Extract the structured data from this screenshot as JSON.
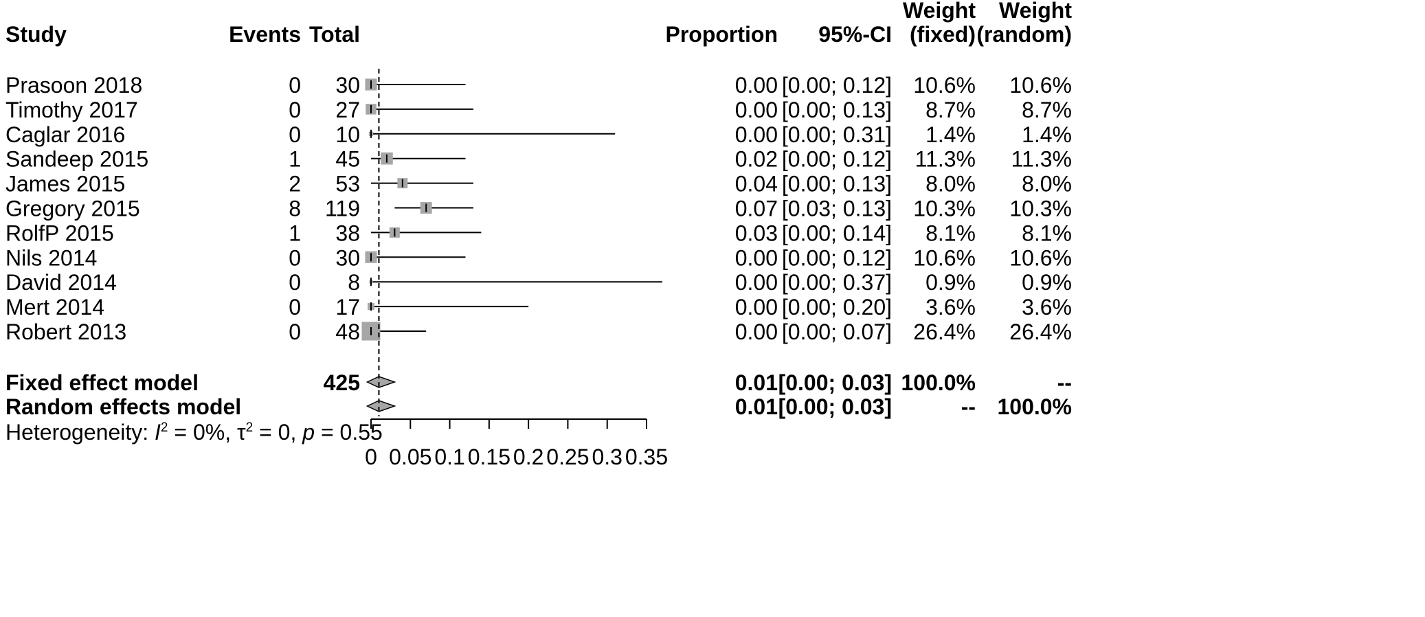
{
  "chart_data": {
    "type": "forest",
    "columns": {
      "study": "Study",
      "events": "Events",
      "total": "Total",
      "proportion": "Proportion",
      "ci": "95%-CI",
      "weight_fixed_line1": "Weight",
      "weight_fixed_line2": "(fixed)",
      "weight_random_line1": "Weight",
      "weight_random_line2": "(random)"
    },
    "studies": [
      {
        "study": "Prasoon 2018",
        "events": "0",
        "total": "30",
        "proportion": 0.0,
        "ci_low": 0.0,
        "ci_high": 0.12,
        "prop_text": "0.00",
        "ci_text": "[0.00; 0.12]",
        "w_fixed": "10.6%",
        "w_random": "10.6%",
        "weight": 10.6
      },
      {
        "study": "Timothy 2017",
        "events": "0",
        "total": "27",
        "proportion": 0.0,
        "ci_low": 0.0,
        "ci_high": 0.13,
        "prop_text": "0.00",
        "ci_text": "[0.00; 0.13]",
        "w_fixed": "8.7%",
        "w_random": "8.7%",
        "weight": 8.7
      },
      {
        "study": "Caglar 2016",
        "events": "0",
        "total": "10",
        "proportion": 0.0,
        "ci_low": 0.0,
        "ci_high": 0.31,
        "prop_text": "0.00",
        "ci_text": "[0.00; 0.31]",
        "w_fixed": "1.4%",
        "w_random": "1.4%",
        "weight": 1.4
      },
      {
        "study": "Sandeep 2015",
        "events": "1",
        "total": "45",
        "proportion": 0.02,
        "ci_low": 0.0,
        "ci_high": 0.12,
        "prop_text": "0.02",
        "ci_text": "[0.00; 0.12]",
        "w_fixed": "11.3%",
        "w_random": "11.3%",
        "weight": 11.3
      },
      {
        "study": "James 2015",
        "events": "2",
        "total": "53",
        "proportion": 0.04,
        "ci_low": 0.0,
        "ci_high": 0.13,
        "prop_text": "0.04",
        "ci_text": "[0.00; 0.13]",
        "w_fixed": "8.0%",
        "w_random": "8.0%",
        "weight": 8.0
      },
      {
        "study": "Gregory 2015",
        "events": "8",
        "total": "119",
        "proportion": 0.07,
        "ci_low": 0.03,
        "ci_high": 0.13,
        "prop_text": "0.07",
        "ci_text": "[0.03; 0.13]",
        "w_fixed": "10.3%",
        "w_random": "10.3%",
        "weight": 10.3
      },
      {
        "study": "RolfP 2015",
        "events": "1",
        "total": "38",
        "proportion": 0.03,
        "ci_low": 0.0,
        "ci_high": 0.14,
        "prop_text": "0.03",
        "ci_text": "[0.00; 0.14]",
        "w_fixed": "8.1%",
        "w_random": "8.1%",
        "weight": 8.1
      },
      {
        "study": "Nils 2014",
        "events": "0",
        "total": "30",
        "proportion": 0.0,
        "ci_low": 0.0,
        "ci_high": 0.12,
        "prop_text": "0.00",
        "ci_text": "[0.00; 0.12]",
        "w_fixed": "10.6%",
        "w_random": "10.6%",
        "weight": 10.6
      },
      {
        "study": "David 2014",
        "events": "0",
        "total": "8",
        "proportion": 0.0,
        "ci_low": 0.0,
        "ci_high": 0.37,
        "prop_text": "0.00",
        "ci_text": "[0.00; 0.37]",
        "w_fixed": "0.9%",
        "w_random": "0.9%",
        "weight": 0.9
      },
      {
        "study": "Mert 2014",
        "events": "0",
        "total": "17",
        "proportion": 0.0,
        "ci_low": 0.0,
        "ci_high": 0.2,
        "prop_text": "0.00",
        "ci_text": "[0.00; 0.20]",
        "w_fixed": "3.6%",
        "w_random": "3.6%",
        "weight": 3.6
      },
      {
        "study": "Robert 2013",
        "events": "0",
        "total": "48",
        "proportion": 0.0,
        "ci_low": 0.0,
        "ci_high": 0.07,
        "prop_text": "0.00",
        "ci_text": "[0.00; 0.07]",
        "w_fixed": "26.4%",
        "w_random": "26.4%",
        "weight": 26.4
      }
    ],
    "summaries": [
      {
        "label": "Fixed effect model",
        "total": "425",
        "estimate": 0.01,
        "ci_low": 0.0,
        "ci_high": 0.03,
        "prop_text": "0.01",
        "ci_text": "[0.00; 0.03]",
        "w_fixed": "100.0%",
        "w_random": "--"
      },
      {
        "label": "Random effects model",
        "total": "",
        "estimate": 0.01,
        "ci_low": 0.0,
        "ci_high": 0.03,
        "prop_text": "0.01",
        "ci_text": "[0.00; 0.03]",
        "w_fixed": "--",
        "w_random": "100.0%"
      }
    ],
    "heterogeneity": {
      "prefix": "Heterogeneity: ",
      "i_symbol": "I",
      "i_sup": "2",
      "i_value": " = 0%, ",
      "tau_symbol": "τ",
      "tau_sup": "2",
      "tau_value": " = 0, ",
      "p_symbol": "p",
      "p_value": " = 0.55"
    },
    "x_axis": {
      "min": 0,
      "max": 0.35,
      "ticks": [
        0,
        0.05,
        0.1,
        0.15,
        0.2,
        0.25,
        0.3,
        0.35
      ],
      "tick_labels": [
        "0",
        "0.05",
        "0.1",
        "0.15",
        "0.2",
        "0.25",
        "0.3",
        "0.35"
      ]
    },
    "reference_line": 0.01,
    "colors": {
      "square": "#a6a6a6",
      "diamond": "#a6a6a6",
      "ink": "#000000"
    }
  }
}
